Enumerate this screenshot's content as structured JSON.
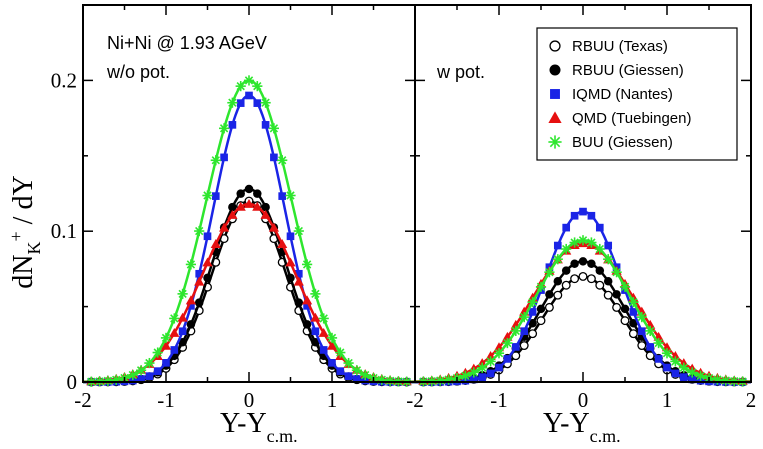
{
  "chart_data": {
    "type": "line",
    "xlabel_main": "Y-Y",
    "xlabel_sub": "c.m.",
    "ylabel_main": "dN",
    "ylabel_sub": "K",
    "ylabel_sup": "+",
    "ylabel_tail": " / dY",
    "ylim": [
      0,
      0.25
    ],
    "yticks": [
      0,
      0.1,
      0.2
    ],
    "ytick_labels": [
      "0",
      "0.1",
      "0.2"
    ],
    "annotation": "Ni+Ni @ 1.93 AGeV",
    "legend": {
      "placement": "top-right of right panel"
    },
    "panels": [
      {
        "label": "w/o pot.",
        "xlim": [
          -2,
          2
        ],
        "xticks": [
          -2,
          -1,
          0,
          1
        ],
        "xtick_labels": [
          "-2",
          "-1",
          "0",
          "1"
        ],
        "series": [
          {
            "name": "RBUU (Texas)",
            "color": "#000000",
            "marker": "open-circle",
            "amplitude": 0.12,
            "sigma": 0.44
          },
          {
            "name": "RBUU (Giessen)",
            "color": "#000000",
            "marker": "filled-circle",
            "amplitude": 0.128,
            "sigma": 0.45
          },
          {
            "name": "IQMD (Nantes)",
            "color": "#1a24e6",
            "marker": "square",
            "amplitude": 0.19,
            "sigma": 0.43
          },
          {
            "name": "QMD (Tuebingen)",
            "color": "#e61010",
            "marker": "triangle",
            "amplitude": 0.118,
            "sigma": 0.56
          },
          {
            "name": "BUU (Giessen)",
            "color": "#2ee62e",
            "marker": "star",
            "amplitude": 0.2,
            "sigma": 0.51
          }
        ]
      },
      {
        "label": "w pot.",
        "xlim": [
          -2,
          2
        ],
        "xticks": [
          -2,
          -1,
          0,
          1,
          2
        ],
        "xtick_labels": [
          "-2",
          "-1",
          "0",
          "1",
          "2"
        ],
        "series": [
          {
            "name": "RBUU (Texas)",
            "color": "#000000",
            "marker": "open-circle",
            "amplitude": 0.07,
            "sigma": 0.48
          },
          {
            "name": "RBUU (Giessen)",
            "color": "#000000",
            "marker": "filled-circle",
            "amplitude": 0.08,
            "sigma": 0.5
          },
          {
            "name": "IQMD (Nantes)",
            "color": "#1a24e6",
            "marker": "square",
            "amplitude": 0.113,
            "sigma": 0.45
          },
          {
            "name": "QMD (Tuebingen)",
            "color": "#e61010",
            "marker": "triangle",
            "amplitude": 0.092,
            "sigma": 0.6
          },
          {
            "name": "BUU (Giessen)",
            "color": "#2ee62e",
            "marker": "star",
            "amplitude": 0.094,
            "sigma": 0.56
          }
        ]
      }
    ]
  }
}
